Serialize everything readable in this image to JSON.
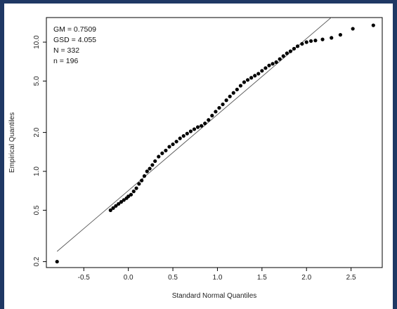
{
  "chart_data": {
    "type": "scatter",
    "title": "",
    "xlabel": "Standard Normal Quantiles",
    "ylabel": "Empirical Quantiles",
    "xlim": [
      -0.92,
      2.85
    ],
    "ylim": [
      0.18,
      15.5
    ],
    "y_scale": "log",
    "grid": false,
    "x_ticks": [
      -0.5,
      0.0,
      0.5,
      1.0,
      1.5,
      2.0,
      2.5
    ],
    "x_tick_labels": [
      "-0.5",
      "0.0",
      "0.5",
      "1.0",
      "1.5",
      "2.0",
      "2.5"
    ],
    "y_ticks": [
      0.2,
      0.5,
      1.0,
      2.0,
      5.0,
      10.0
    ],
    "y_tick_labels": [
      "0.2",
      "0.5",
      "1.0",
      "2.0",
      "5.0",
      "10.0"
    ],
    "annotations": [
      "GM = 0.7509",
      "GSD = 4.055",
      "N = 332",
      "n = 196"
    ],
    "fit_line": {
      "x": [
        -0.8,
        2.3
      ],
      "y": [
        0.24,
        16.0
      ]
    },
    "points": {
      "x": [
        -0.8,
        -0.2,
        -0.17,
        -0.14,
        -0.11,
        -0.08,
        -0.05,
        -0.02,
        0.0,
        0.03,
        0.06,
        0.09,
        0.12,
        0.15,
        0.18,
        0.21,
        0.24,
        0.27,
        0.3,
        0.34,
        0.38,
        0.42,
        0.46,
        0.5,
        0.54,
        0.58,
        0.62,
        0.66,
        0.7,
        0.74,
        0.78,
        0.82,
        0.86,
        0.9,
        0.94,
        0.98,
        1.02,
        1.06,
        1.1,
        1.14,
        1.18,
        1.22,
        1.26,
        1.3,
        1.34,
        1.38,
        1.42,
        1.46,
        1.5,
        1.54,
        1.58,
        1.62,
        1.66,
        1.7,
        1.74,
        1.78,
        1.82,
        1.86,
        1.9,
        1.95,
        2.0,
        2.05,
        2.1,
        2.18,
        2.28,
        2.38,
        2.52,
        2.75
      ],
      "y": [
        0.2,
        0.5,
        0.52,
        0.54,
        0.56,
        0.58,
        0.6,
        0.62,
        0.64,
        0.66,
        0.7,
        0.74,
        0.8,
        0.85,
        0.92,
        1.0,
        1.05,
        1.12,
        1.2,
        1.3,
        1.38,
        1.45,
        1.55,
        1.62,
        1.7,
        1.8,
        1.88,
        1.96,
        2.04,
        2.12,
        2.2,
        2.25,
        2.35,
        2.5,
        2.7,
        2.9,
        3.1,
        3.3,
        3.55,
        3.8,
        4.05,
        4.3,
        4.6,
        4.9,
        5.1,
        5.3,
        5.5,
        5.7,
        6.0,
        6.3,
        6.6,
        6.8,
        7.0,
        7.4,
        7.8,
        8.2,
        8.5,
        8.9,
        9.3,
        9.7,
        10.0,
        10.2,
        10.3,
        10.5,
        10.8,
        11.4,
        12.7,
        13.5
      ]
    }
  }
}
